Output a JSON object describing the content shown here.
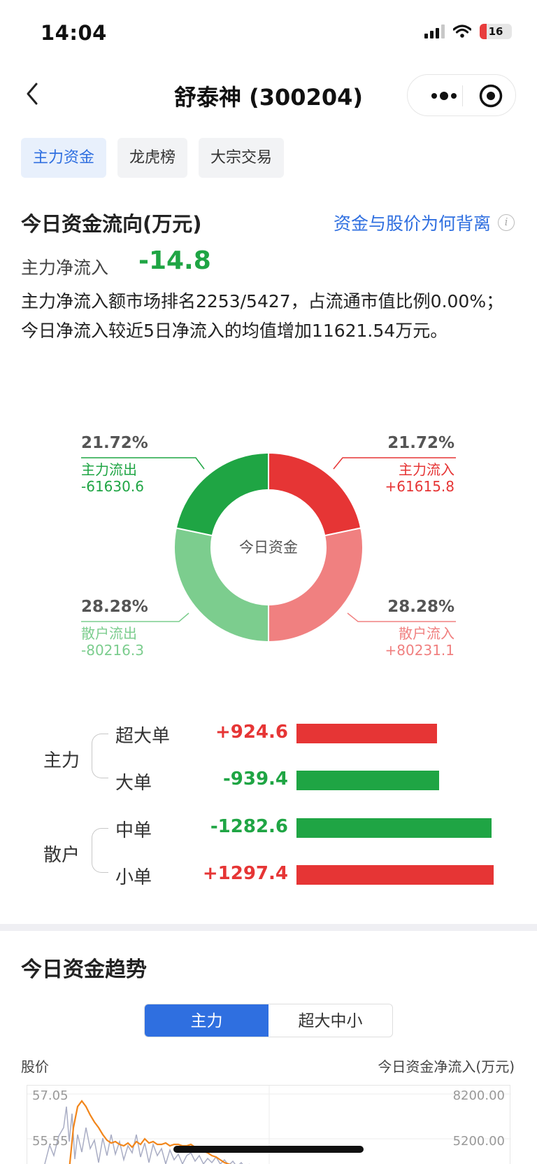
{
  "status_bar": {
    "time": "14:04",
    "battery": "16"
  },
  "nav": {
    "title": "舒泰神 (300204)"
  },
  "tabs": [
    {
      "label": "主力资金",
      "active": true
    },
    {
      "label": "龙虎榜",
      "active": false
    },
    {
      "label": "大宗交易",
      "active": false
    }
  ],
  "flow": {
    "heading": "今日资金流向(万元)",
    "why_link": "资金与股价为何背离",
    "net_label": "主力净流入",
    "net_value": "-14.8",
    "description": "主力净流入额市场排名2253/5427，占流通市值比例0.00%；今日净流入较近5日净流入的均值增加11621.54万元。"
  },
  "donut": {
    "center": "今日资金",
    "segments": [
      {
        "key": "main_out",
        "pct": "21.72%",
        "label": "主力流出",
        "value": "-61630.6",
        "color": "#1fa544",
        "share": 0.2172
      },
      {
        "key": "main_in",
        "pct": "21.72%",
        "label": "主力流入",
        "value": "+61615.8",
        "color": "#e63535",
        "share": 0.2172
      },
      {
        "key": "retail_in",
        "pct": "28.28%",
        "label": "散户流入",
        "value": "+80231.1",
        "color": "#f08080",
        "share": 0.2828
      },
      {
        "key": "retail_out",
        "pct": "28.28%",
        "label": "散户流出",
        "value": "-80216.3",
        "color": "#7ccd8e",
        "share": 0.2828
      }
    ]
  },
  "orders": {
    "groups": [
      {
        "label": "主力",
        "rows": [
          {
            "name": "超大单",
            "value": "+924.6",
            "amount": 924.6
          },
          {
            "name": "大单",
            "value": "-939.4",
            "amount": -939.4
          }
        ]
      },
      {
        "label": "散户",
        "rows": [
          {
            "name": "中单",
            "value": "-1282.6",
            "amount": -1282.6
          },
          {
            "name": "小单",
            "value": "+1297.4",
            "amount": 1297.4
          }
        ]
      }
    ],
    "colors": {
      "positive": "#e63535",
      "negative": "#1fa544"
    }
  },
  "trend": {
    "title": "今日资金趋势",
    "segments": [
      {
        "label": "主力",
        "active": true
      },
      {
        "label": "超大中小",
        "active": false
      }
    ],
    "left_axis_title": "股价",
    "right_axis_title": "今日资金净流入(万元)",
    "left_ticks": [
      "57.05",
      "55.55"
    ],
    "right_ticks": [
      "8200.00",
      "5200.00"
    ]
  }
}
